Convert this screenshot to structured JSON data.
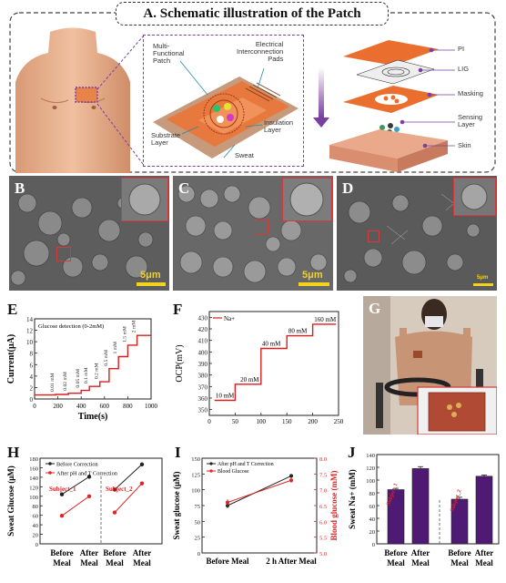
{
  "panel_A": {
    "label": "A.",
    "title": "A. Schematic illustration of the Patch",
    "annotations": {
      "multi_functional": "Multi-\nFunctional\nPatch",
      "electrical": "Electrical\nInterconnection\nPads",
      "insulation": "Insulation\nLayer",
      "substrate": "Substrate\nLayer",
      "sweat": "Sweat"
    },
    "layers": [
      "PI",
      "LIG",
      "Masking",
      "Sensing\nLayer",
      "Skin"
    ]
  },
  "sem_panels": [
    {
      "label": "B",
      "scale": "5μm"
    },
    {
      "label": "C",
      "scale": "5μm"
    },
    {
      "label": "D",
      "scale": "5μm"
    }
  ],
  "panel_G": {
    "label": "G"
  },
  "chart_data": [
    {
      "panel": "E",
      "type": "line",
      "legend": "Glucose detection (0-2mM)",
      "xlabel": "Time(s)",
      "ylabel": "Current(μA)",
      "xlim": [
        0,
        1000
      ],
      "ylim": [
        0,
        14
      ],
      "xticks": [
        0,
        200,
        400,
        600,
        800,
        1000
      ],
      "yticks": [
        0,
        2,
        4,
        6,
        8,
        10,
        12,
        14
      ],
      "color": "#d91e1e",
      "x": [
        0,
        180,
        180,
        290,
        290,
        400,
        400,
        470,
        470,
        560,
        560,
        640,
        640,
        720,
        720,
        800,
        800,
        880,
        880,
        1000
      ],
      "y": [
        0.7,
        0.7,
        0.8,
        0.8,
        1.0,
        1.0,
        1.5,
        1.5,
        2.2,
        2.2,
        3.0,
        3.0,
        5.3,
        5.3,
        7.4,
        7.4,
        9.4,
        9.4,
        11.1,
        11.1
      ],
      "step_labels": [
        "0.01 mM",
        "0.02 mM",
        "0.05 mM",
        "0.1 mM",
        "0.2 mM",
        "0.5 mM",
        "1 mM",
        "1.5 mM",
        "2 mM"
      ]
    },
    {
      "panel": "F",
      "type": "line",
      "legend": "Na+",
      "xlabel": "Time(s)",
      "ylabel": "OCP(mV)",
      "xlim": [
        0,
        250
      ],
      "ylim": [
        345,
        435
      ],
      "xticks": [
        0,
        50,
        100,
        150,
        200,
        250
      ],
      "yticks": [
        350,
        360,
        370,
        380,
        390,
        400,
        410,
        420,
        430
      ],
      "color": "#d91e1e",
      "x": [
        10,
        50,
        50,
        100,
        100,
        150,
        150,
        200,
        200,
        245
      ],
      "y": [
        358,
        358,
        372,
        372,
        403,
        403,
        414,
        414,
        424,
        424
      ],
      "step_labels": [
        "10 mM",
        "20 mM",
        "40 mM",
        "80 mM",
        "160 mM"
      ]
    },
    {
      "panel": "H",
      "type": "line",
      "ylabel": "Sweat Glucose (μM)",
      "ylim": [
        0,
        180
      ],
      "yticks": [
        0,
        20,
        40,
        60,
        80,
        100,
        120,
        140,
        160,
        180
      ],
      "categories": [
        "Before\nMeal",
        "After\nMeal",
        "Before\nMeal",
        "After\nMeal"
      ],
      "groups": [
        "Subject_1",
        "Subject_2"
      ],
      "series": [
        {
          "name": "Before Correction",
          "color": "#222222",
          "values": [
            104,
            141,
            114,
            167
          ]
        },
        {
          "name": "After pH and T Correction",
          "color": "#e02424",
          "values": [
            59,
            100,
            66,
            127
          ]
        }
      ]
    },
    {
      "panel": "I",
      "type": "line",
      "ylabel": "Sweat glucose (μM)",
      "y2label": "Blood glucose (mM)",
      "ylim": [
        0,
        150
      ],
      "y2lim": [
        5.0,
        8.0
      ],
      "yticks": [
        0,
        25,
        50,
        75,
        100,
        125,
        150
      ],
      "y2ticks": [
        5.0,
        5.5,
        6.0,
        6.5,
        7.0,
        7.5,
        8.0
      ],
      "categories": [
        "Before Meal",
        "2 h After Meal"
      ],
      "series": [
        {
          "name": "After pH and T Correction",
          "color": "#222222",
          "values": [
            75,
            122
          ],
          "errors": [
            4,
            3
          ]
        },
        {
          "name": "Blood Glucose",
          "color": "#e02424",
          "values2": [
            6.6,
            7.3
          ],
          "errors2": [
            0.1,
            0.08
          ]
        }
      ]
    },
    {
      "panel": "J",
      "type": "bar",
      "ylabel": "Sweat Na+ (mM)",
      "ylim": [
        0,
        140
      ],
      "yticks": [
        0,
        20,
        40,
        60,
        80,
        100,
        120,
        140
      ],
      "categories": [
        "Before\nMeal",
        "After\nMeal",
        "Before\nMeal",
        "After\nMeal"
      ],
      "groups": [
        "Subject_1",
        "Subject_2"
      ],
      "color": "#4e1a74",
      "values": [
        85,
        118,
        70,
        106
      ],
      "errors": [
        2,
        3,
        3,
        2
      ]
    }
  ]
}
